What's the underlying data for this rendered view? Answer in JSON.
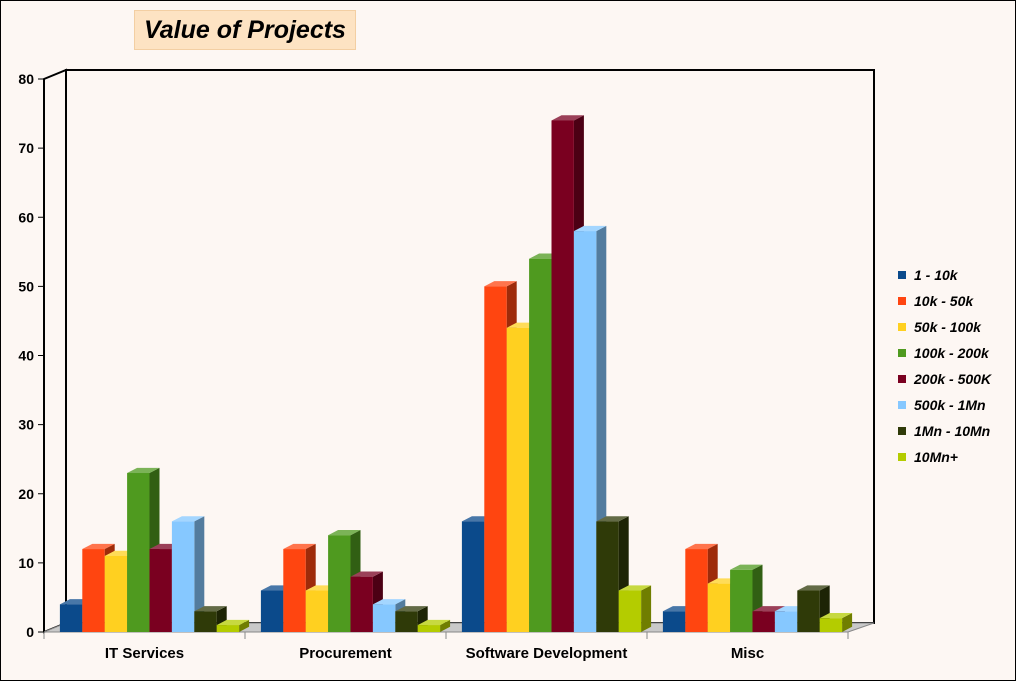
{
  "chart_data": {
    "type": "bar",
    "title": "Value of Projects",
    "categories": [
      "IT Services",
      "Procurement",
      "Software Development",
      "Misc"
    ],
    "ylim": [
      0,
      80
    ],
    "yticks": [
      0,
      10,
      20,
      30,
      40,
      50,
      60,
      70,
      80
    ],
    "grid": false,
    "legend_position": "right",
    "series": [
      {
        "name": "1 - 10k",
        "color": "#0b4a8b",
        "values": [
          4,
          6,
          16,
          3
        ]
      },
      {
        "name": "10k - 50k",
        "color": "#ff4510",
        "values": [
          12,
          12,
          50,
          12
        ]
      },
      {
        "name": "50k - 100k",
        "color": "#ffd020",
        "values": [
          11,
          6,
          44,
          7
        ]
      },
      {
        "name": "100k - 200k",
        "color": "#4f9a1f",
        "values": [
          23,
          14,
          54,
          9
        ]
      },
      {
        "name": "200k - 500K",
        "color": "#7a0020",
        "values": [
          12,
          8,
          74,
          3
        ]
      },
      {
        "name": "500k - 1Mn",
        "color": "#86c8ff",
        "values": [
          16,
          4,
          58,
          3
        ]
      },
      {
        "name": "1Mn - 10Mn",
        "color": "#2f3a08",
        "values": [
          3,
          3,
          16,
          6
        ]
      },
      {
        "name": "10Mn+",
        "color": "#b4cc00",
        "values": [
          1,
          1,
          6,
          2
        ]
      }
    ]
  }
}
